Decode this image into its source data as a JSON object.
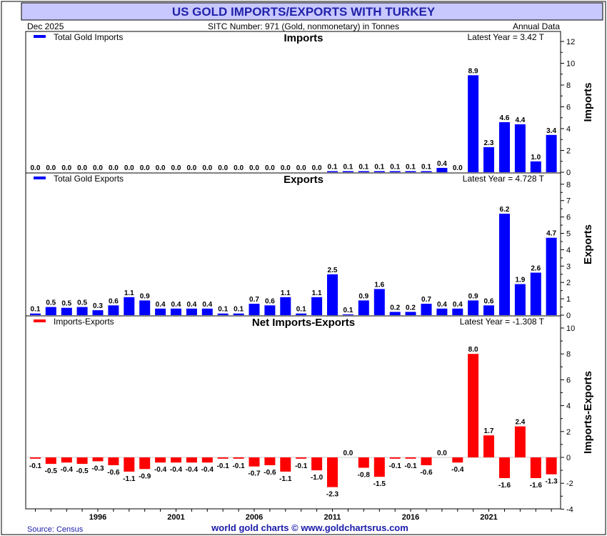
{
  "header": {
    "title": "US GOLD IMPORTS/EXPORTS WITH TURKEY",
    "date": "Dec  2025",
    "sitc": "SITC Number: 971 (Gold, nonmonetary) in Tonnes",
    "frequency": "Annual Data"
  },
  "footer": {
    "source": "Source: Census",
    "credit": "world gold charts © www.goldchartsrus.com"
  },
  "colors": {
    "title_band": "#c8c8ff",
    "title_text": "#2222aa",
    "imports": "#0000ff",
    "exports": "#0000ff",
    "net": "#ff0000",
    "footer_credit": "#1a1aaa"
  },
  "chart_data": [
    {
      "type": "bar",
      "title": "Imports",
      "legend": "Total Gold Imports",
      "legend_position": "top-left",
      "latest": "Latest Year = 3.42 T",
      "ylabel": "Imports",
      "ylim": [
        0,
        13
      ],
      "yticks": [
        "0",
        "2",
        "4",
        "6",
        "8",
        "10",
        "12"
      ],
      "x": [
        1992,
        1993,
        1994,
        1995,
        1996,
        1997,
        1998,
        1999,
        2000,
        2001,
        2002,
        2003,
        2004,
        2005,
        2006,
        2007,
        2008,
        2009,
        2010,
        2011,
        2012,
        2013,
        2014,
        2015,
        2016,
        2017,
        2018,
        2019,
        2020,
        2021,
        2022,
        2023,
        2024,
        2025
      ],
      "values": [
        0.0,
        0.0,
        0.0,
        0.0,
        0.0,
        0.0,
        0.0,
        0.0,
        0.0,
        0.0,
        0.0,
        0.0,
        0.0,
        0.0,
        0.0,
        0.0,
        0.0,
        0.0,
        0.0,
        0.1,
        0.1,
        0.1,
        0.1,
        0.1,
        0.1,
        0.1,
        0.4,
        0.0,
        8.9,
        2.3,
        4.6,
        4.4,
        1.0,
        3.42
      ],
      "labels": [
        "0.0",
        "0.0",
        "0.0",
        "0.0",
        "0.0",
        "0.0",
        "0.0",
        "0.0",
        "0.0",
        "0.0",
        "0.0",
        "0.0",
        "0.0",
        "0.0",
        "0.0",
        "0.0",
        "0.0",
        "0.0",
        "0.0",
        "0.1",
        "0.1",
        "0.1",
        "0.1",
        "0.1",
        "0.1",
        "0.1",
        "0.4",
        "0.0",
        "8.9",
        "2.3",
        "4.6",
        "4.4",
        "1.0",
        "3.4"
      ]
    },
    {
      "type": "bar",
      "title": "Exports",
      "legend": "Total Gold Exports",
      "legend_position": "top-left",
      "latest": "Latest Year = 4.728 T",
      "ylabel": "Exports",
      "ylim": [
        0,
        8.7
      ],
      "yticks": [
        "0",
        "1",
        "2",
        "3",
        "4",
        "5",
        "6",
        "7",
        "8"
      ],
      "x": [
        1992,
        1993,
        1994,
        1995,
        1996,
        1997,
        1998,
        1999,
        2000,
        2001,
        2002,
        2003,
        2004,
        2005,
        2006,
        2007,
        2008,
        2009,
        2010,
        2011,
        2012,
        2013,
        2014,
        2015,
        2016,
        2017,
        2018,
        2019,
        2020,
        2021,
        2022,
        2023,
        2024,
        2025
      ],
      "values": [
        0.1,
        0.5,
        0.45,
        0.5,
        0.3,
        0.6,
        1.1,
        0.9,
        0.4,
        0.4,
        0.4,
        0.4,
        0.1,
        0.1,
        0.7,
        0.6,
        1.1,
        0.1,
        1.1,
        2.5,
        0.05,
        0.9,
        1.6,
        0.2,
        0.2,
        0.7,
        0.4,
        0.4,
        0.9,
        0.6,
        6.2,
        1.9,
        2.6,
        4.728
      ],
      "labels": [
        "0.1",
        "0.5",
        "0.5",
        "0.5",
        "0.3",
        "0.6",
        "1.1",
        "0.9",
        "0.4",
        "0.4",
        "0.4",
        "0.4",
        "0.1",
        "0.1",
        "0.7",
        "0.6",
        "1.1",
        "0.1",
        "1.1",
        "2.5",
        "0.1",
        "0.9",
        "1.6",
        "0.2",
        "0.2",
        "0.7",
        "0.4",
        "0.4",
        "0.9",
        "0.6",
        "6.2",
        "1.9",
        "2.6",
        "4.7"
      ]
    },
    {
      "type": "bar",
      "title": "Net Imports-Exports",
      "legend": "Imports-Exports",
      "legend_position": "top-left",
      "latest": "Latest Year = -1.308 T",
      "ylabel": "Imports-Exports",
      "ylim": [
        -4,
        10.5
      ],
      "yticks": [
        "-4",
        "-2",
        "0",
        "2",
        "4",
        "6",
        "8",
        "10"
      ],
      "x": [
        1992,
        1993,
        1994,
        1995,
        1996,
        1997,
        1998,
        1999,
        2000,
        2001,
        2002,
        2003,
        2004,
        2005,
        2006,
        2007,
        2008,
        2009,
        2010,
        2011,
        2012,
        2013,
        2014,
        2015,
        2016,
        2017,
        2018,
        2019,
        2020,
        2021,
        2022,
        2023,
        2024,
        2025
      ],
      "values": [
        -0.1,
        -0.5,
        -0.4,
        -0.5,
        -0.3,
        -0.6,
        -1.1,
        -0.9,
        -0.4,
        -0.4,
        -0.4,
        -0.4,
        -0.1,
        -0.1,
        -0.7,
        -0.6,
        -1.1,
        -0.1,
        -1.0,
        -2.3,
        0.0,
        -0.8,
        -1.5,
        -0.1,
        -0.1,
        -0.6,
        0.0,
        -0.4,
        8.0,
        1.7,
        -1.6,
        2.4,
        -1.6,
        -1.308
      ],
      "labels": [
        "-0.1",
        "-0.5",
        "-0.4",
        "-0.5",
        "-0.3",
        "-0.6",
        "-1.1",
        "-0.9",
        "-0.4",
        "-0.4",
        "-0.4",
        "-0.4",
        "-0.1",
        "-0.1",
        "-0.7",
        "-0.6",
        "-1.1",
        "-0.1",
        "-1.0",
        "-2.3",
        "0.0",
        "-0.8",
        "-1.5",
        "-0.1",
        "-0.1",
        "-0.6",
        "0.0",
        "-0.4",
        "8.0",
        "1.7",
        "-1.6",
        "2.4",
        "-1.6",
        "-1.3"
      ]
    }
  ],
  "xaxis": {
    "ticks": [
      "1996",
      "2001",
      "2006",
      "2011",
      "2016",
      "2021"
    ]
  }
}
